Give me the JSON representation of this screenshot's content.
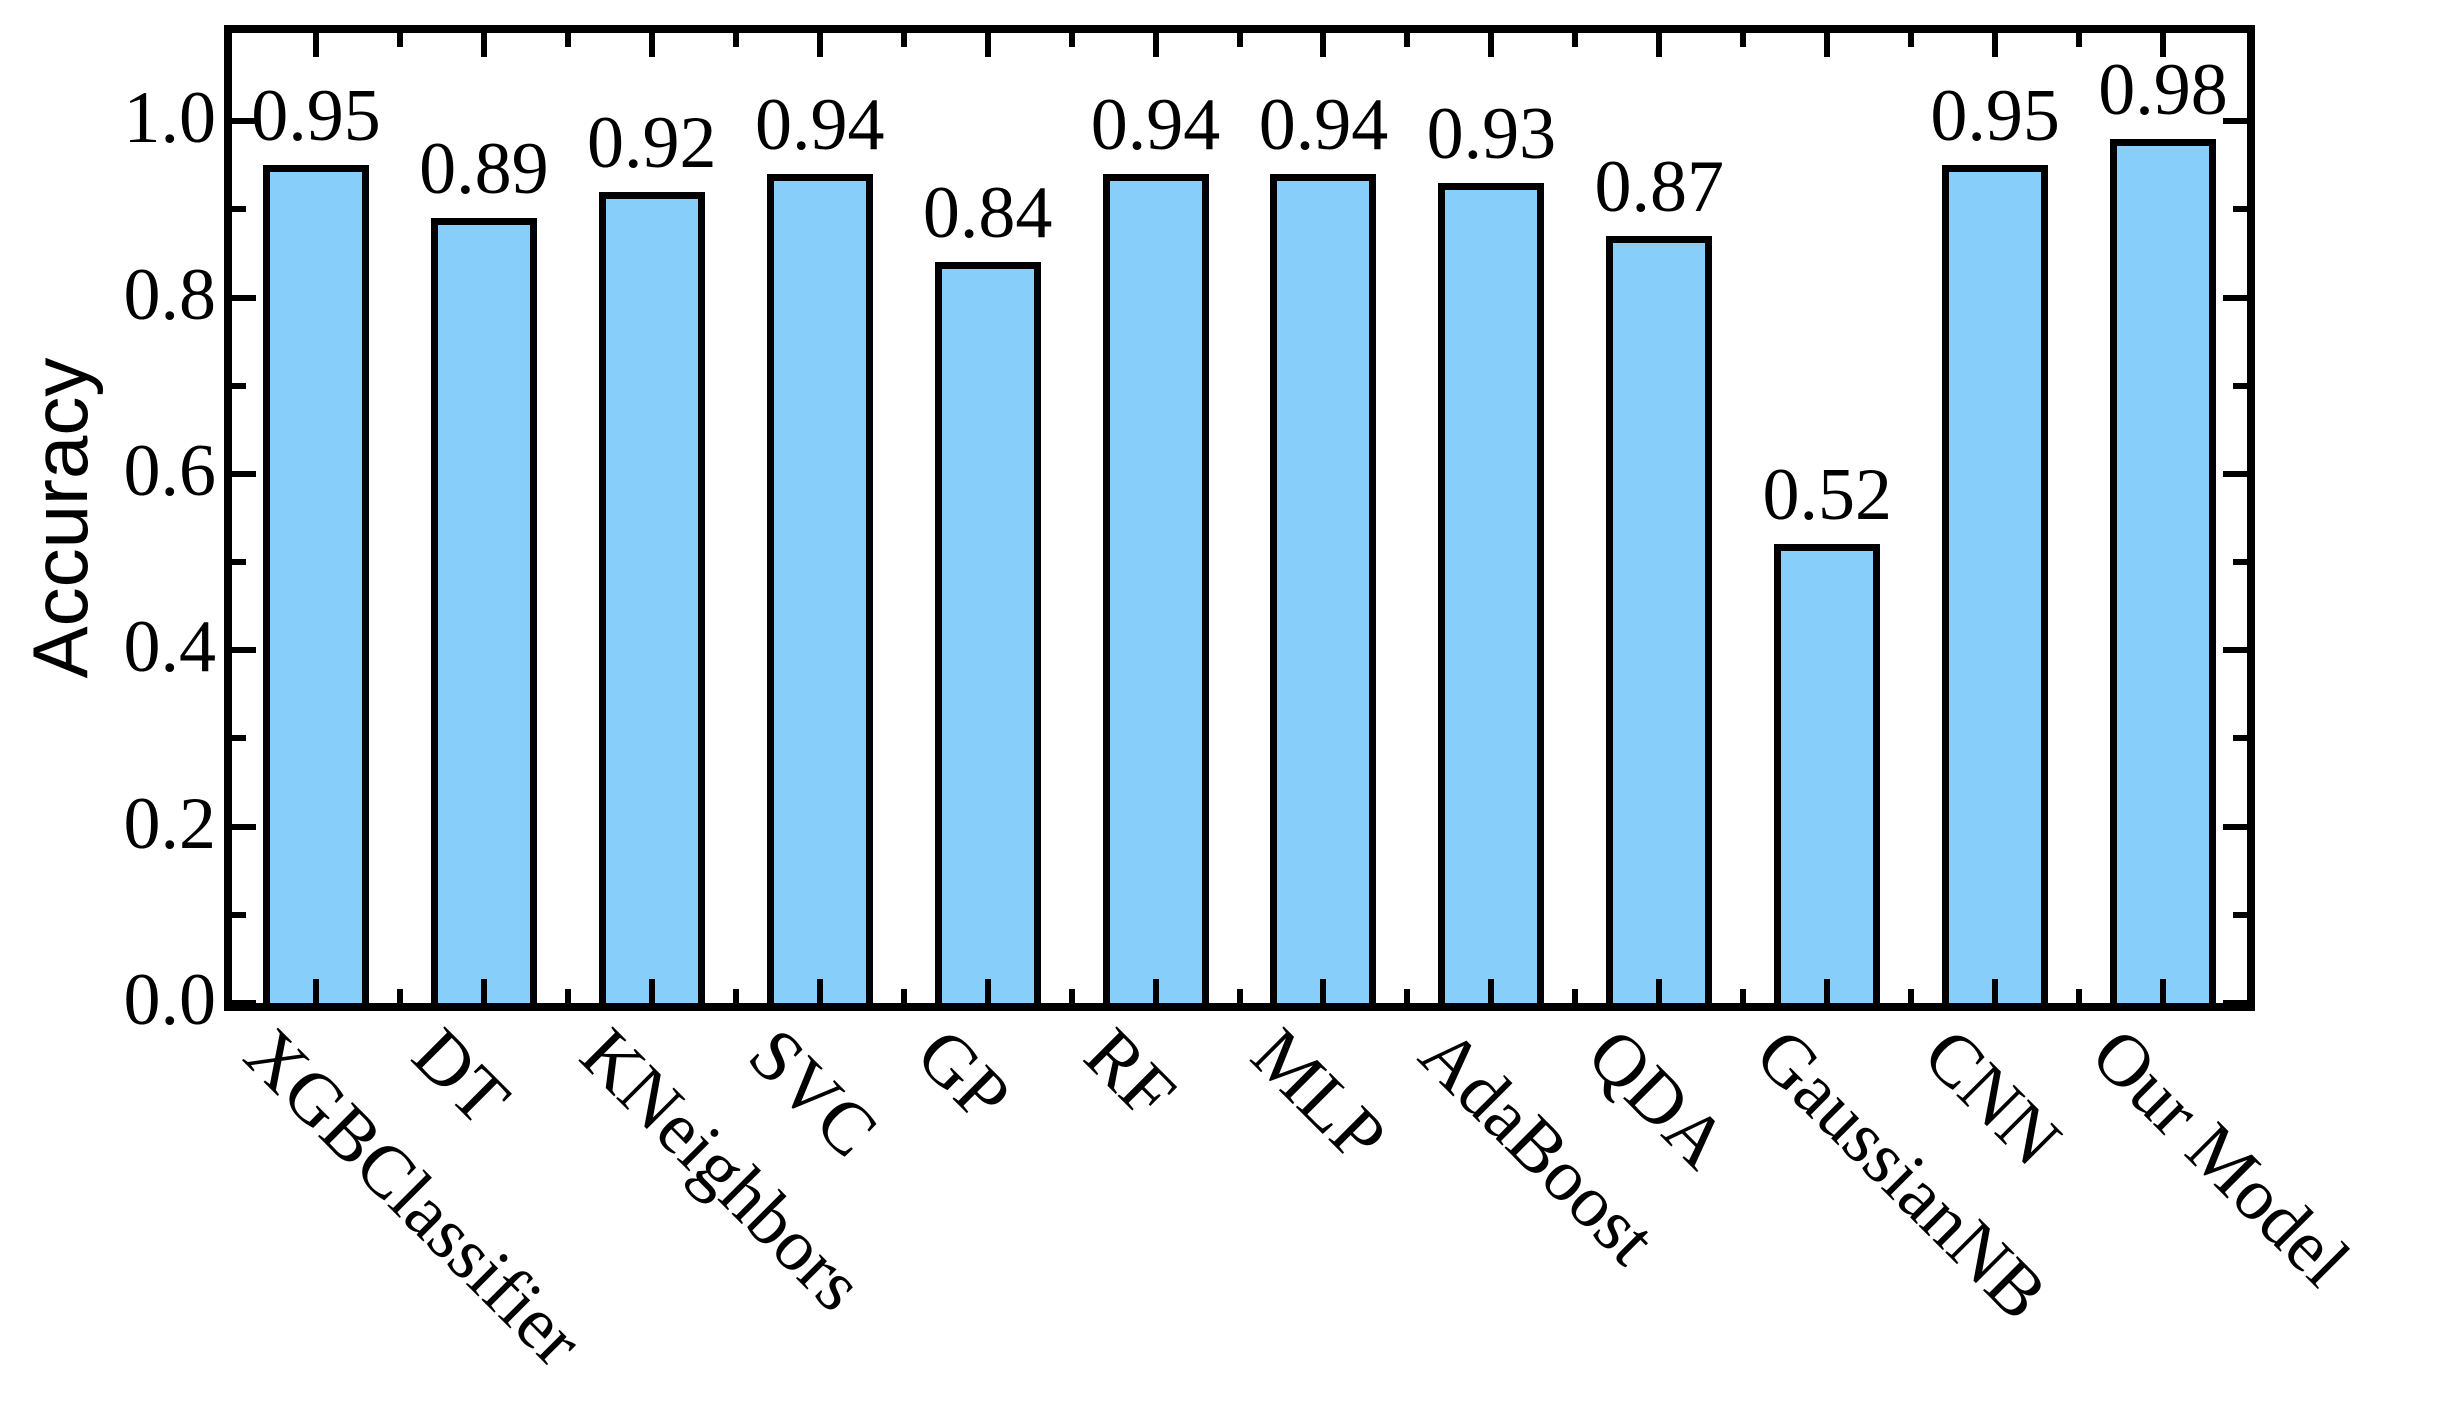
{
  "chart_data": {
    "type": "bar",
    "title": "",
    "xlabel": "",
    "ylabel": "Accuracy",
    "categories": [
      "XGBClassifier",
      "DT",
      "KNeighbors",
      "SVC",
      "GP",
      "RF",
      "MLP",
      "AdaBoost",
      "QDA",
      "GaussianNB",
      "CNN",
      "Our Model"
    ],
    "values": [
      0.95,
      0.89,
      0.92,
      0.94,
      0.84,
      0.94,
      0.94,
      0.93,
      0.87,
      0.52,
      0.95,
      0.98
    ],
    "bar_labels": [
      "0.95",
      "0.89",
      "0.92",
      "0.94",
      "0.84",
      "0.94",
      "0.94",
      "0.93",
      "0.87",
      "0.52",
      "0.95",
      "0.98"
    ],
    "ylim": [
      0,
      1.1
    ],
    "yticks_major": [
      0.0,
      0.2,
      0.4,
      0.6,
      0.8,
      1.0
    ],
    "ytick_labels": [
      "0.0",
      "0.2",
      "0.4",
      "0.6",
      "0.8",
      "1.0"
    ],
    "yticks_minor": [
      0.1,
      0.3,
      0.5,
      0.7,
      0.9
    ],
    "grid": false,
    "legend": null,
    "bar_color": "#87CEFA",
    "bar_edge_color": "#000000",
    "axis_color": "#000000",
    "tick_direction": "in",
    "xtick_label_rotation_deg": 45
  }
}
